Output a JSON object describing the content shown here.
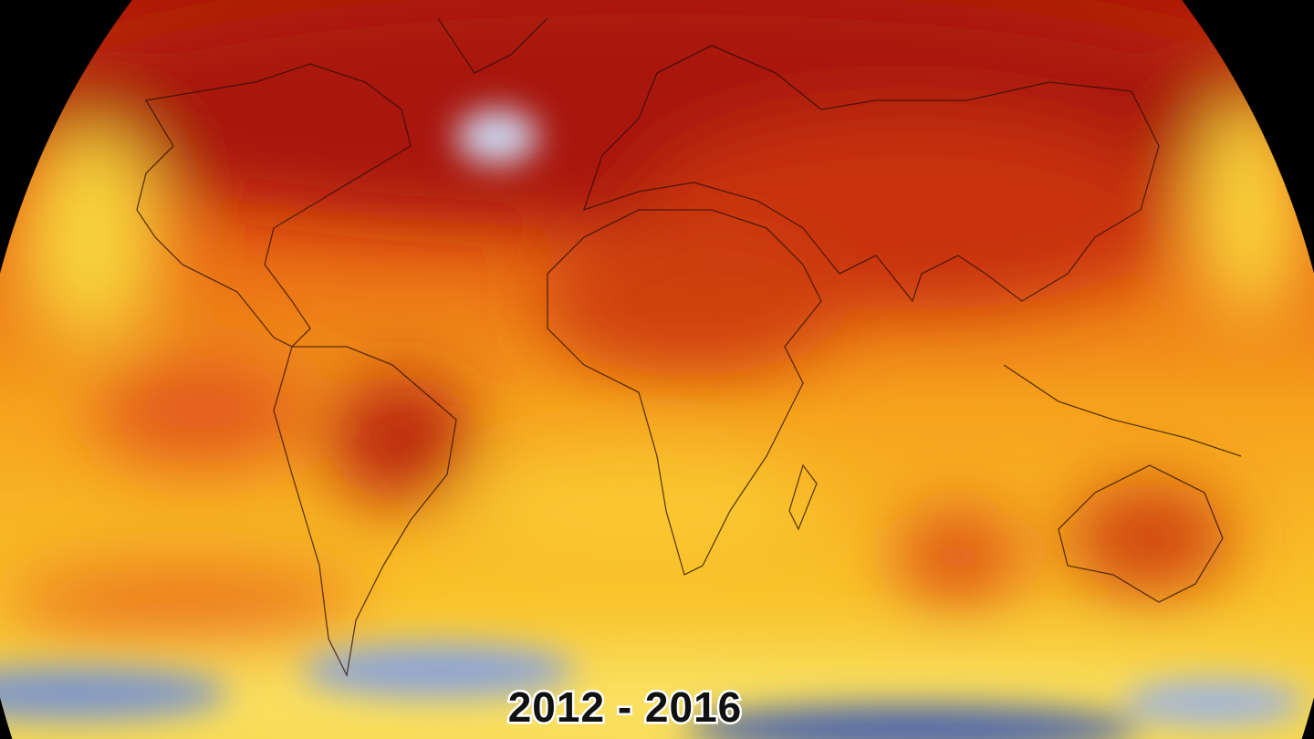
{
  "map": {
    "label": "2012 - 2016"
  }
}
